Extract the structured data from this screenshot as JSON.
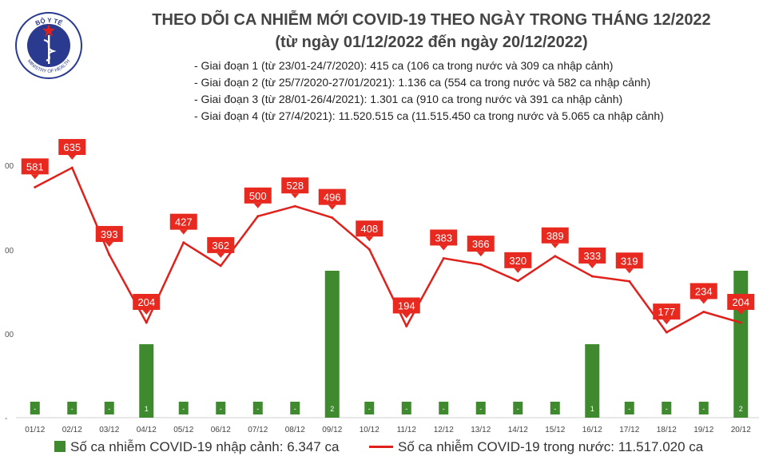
{
  "header": {
    "title": "THEO DÕI CA NHIỄM MỚI COVID-19 THEO NGÀY TRONG THÁNG 12/2022",
    "subtitle": "(từ ngày 01/12/2022 đến ngày 20/12/2022)",
    "notes": [
      "- Giai đoạn 1 (từ 23/01-24/7/2020): 415 ca (106 ca trong nước và 309 ca nhập cảnh)",
      "- Giai đoạn 2 (từ 25/7/2020-27/01/2021): 1.136 ca (554 ca trong nước và 582 ca nhập cảnh)",
      "- Giai đoạn 3 (từ 28/01-26/4/2021): 1.301 ca (910 ca trong nước và 391 ca nhập cảnh)",
      "- Giai đoạn 4 (từ 27/4/2021): 11.520.515 ca (11.515.450 ca trong nước và 5.065 ca nhập cảnh)"
    ]
  },
  "logo": {
    "top_text": "BỘ Y TẾ",
    "bottom_text": "MINISTRY OF HEALTH"
  },
  "colors": {
    "bar": "#3f8a2e",
    "line": "#e0201b",
    "label_bg": "#e8291f",
    "axis": "#d0d0d0"
  },
  "chart_data": {
    "type": "bar+line",
    "categories": [
      "01/12",
      "02/12",
      "03/12",
      "04/12",
      "05/12",
      "06/12",
      "07/12",
      "08/12",
      "09/12",
      "10/12",
      "11/12",
      "12/12",
      "13/12",
      "14/12",
      "15/12",
      "16/12",
      "17/12",
      "18/12",
      "19/12",
      "20/12"
    ],
    "series": [
      {
        "name": "Số ca nhiễm COVID-19 nhập cảnh: 6.347 ca",
        "type": "bar",
        "values": [
          0,
          0,
          0,
          1,
          0,
          0,
          0,
          0,
          2,
          0,
          0,
          0,
          0,
          0,
          0,
          1,
          0,
          0,
          0,
          2
        ],
        "labels": [
          "-",
          "-",
          "-",
          "1",
          "-",
          "-",
          "-",
          "-",
          "2",
          "-",
          "-",
          "-",
          "-",
          "-",
          "-",
          "1",
          "-",
          "-",
          "-",
          "2"
        ]
      },
      {
        "name": "Số ca nhiễm COVID-19 trong nước: 11.517.020 ca",
        "type": "line",
        "values": [
          581,
          635,
          393,
          204,
          427,
          362,
          500,
          528,
          496,
          408,
          194,
          383,
          366,
          320,
          389,
          333,
          319,
          177,
          234,
          204
        ]
      }
    ],
    "left_axis_ticks": [
      "00",
      "00",
      "00",
      "-"
    ],
    "bar_max": 4,
    "line_range": [
      0,
      700
    ]
  }
}
